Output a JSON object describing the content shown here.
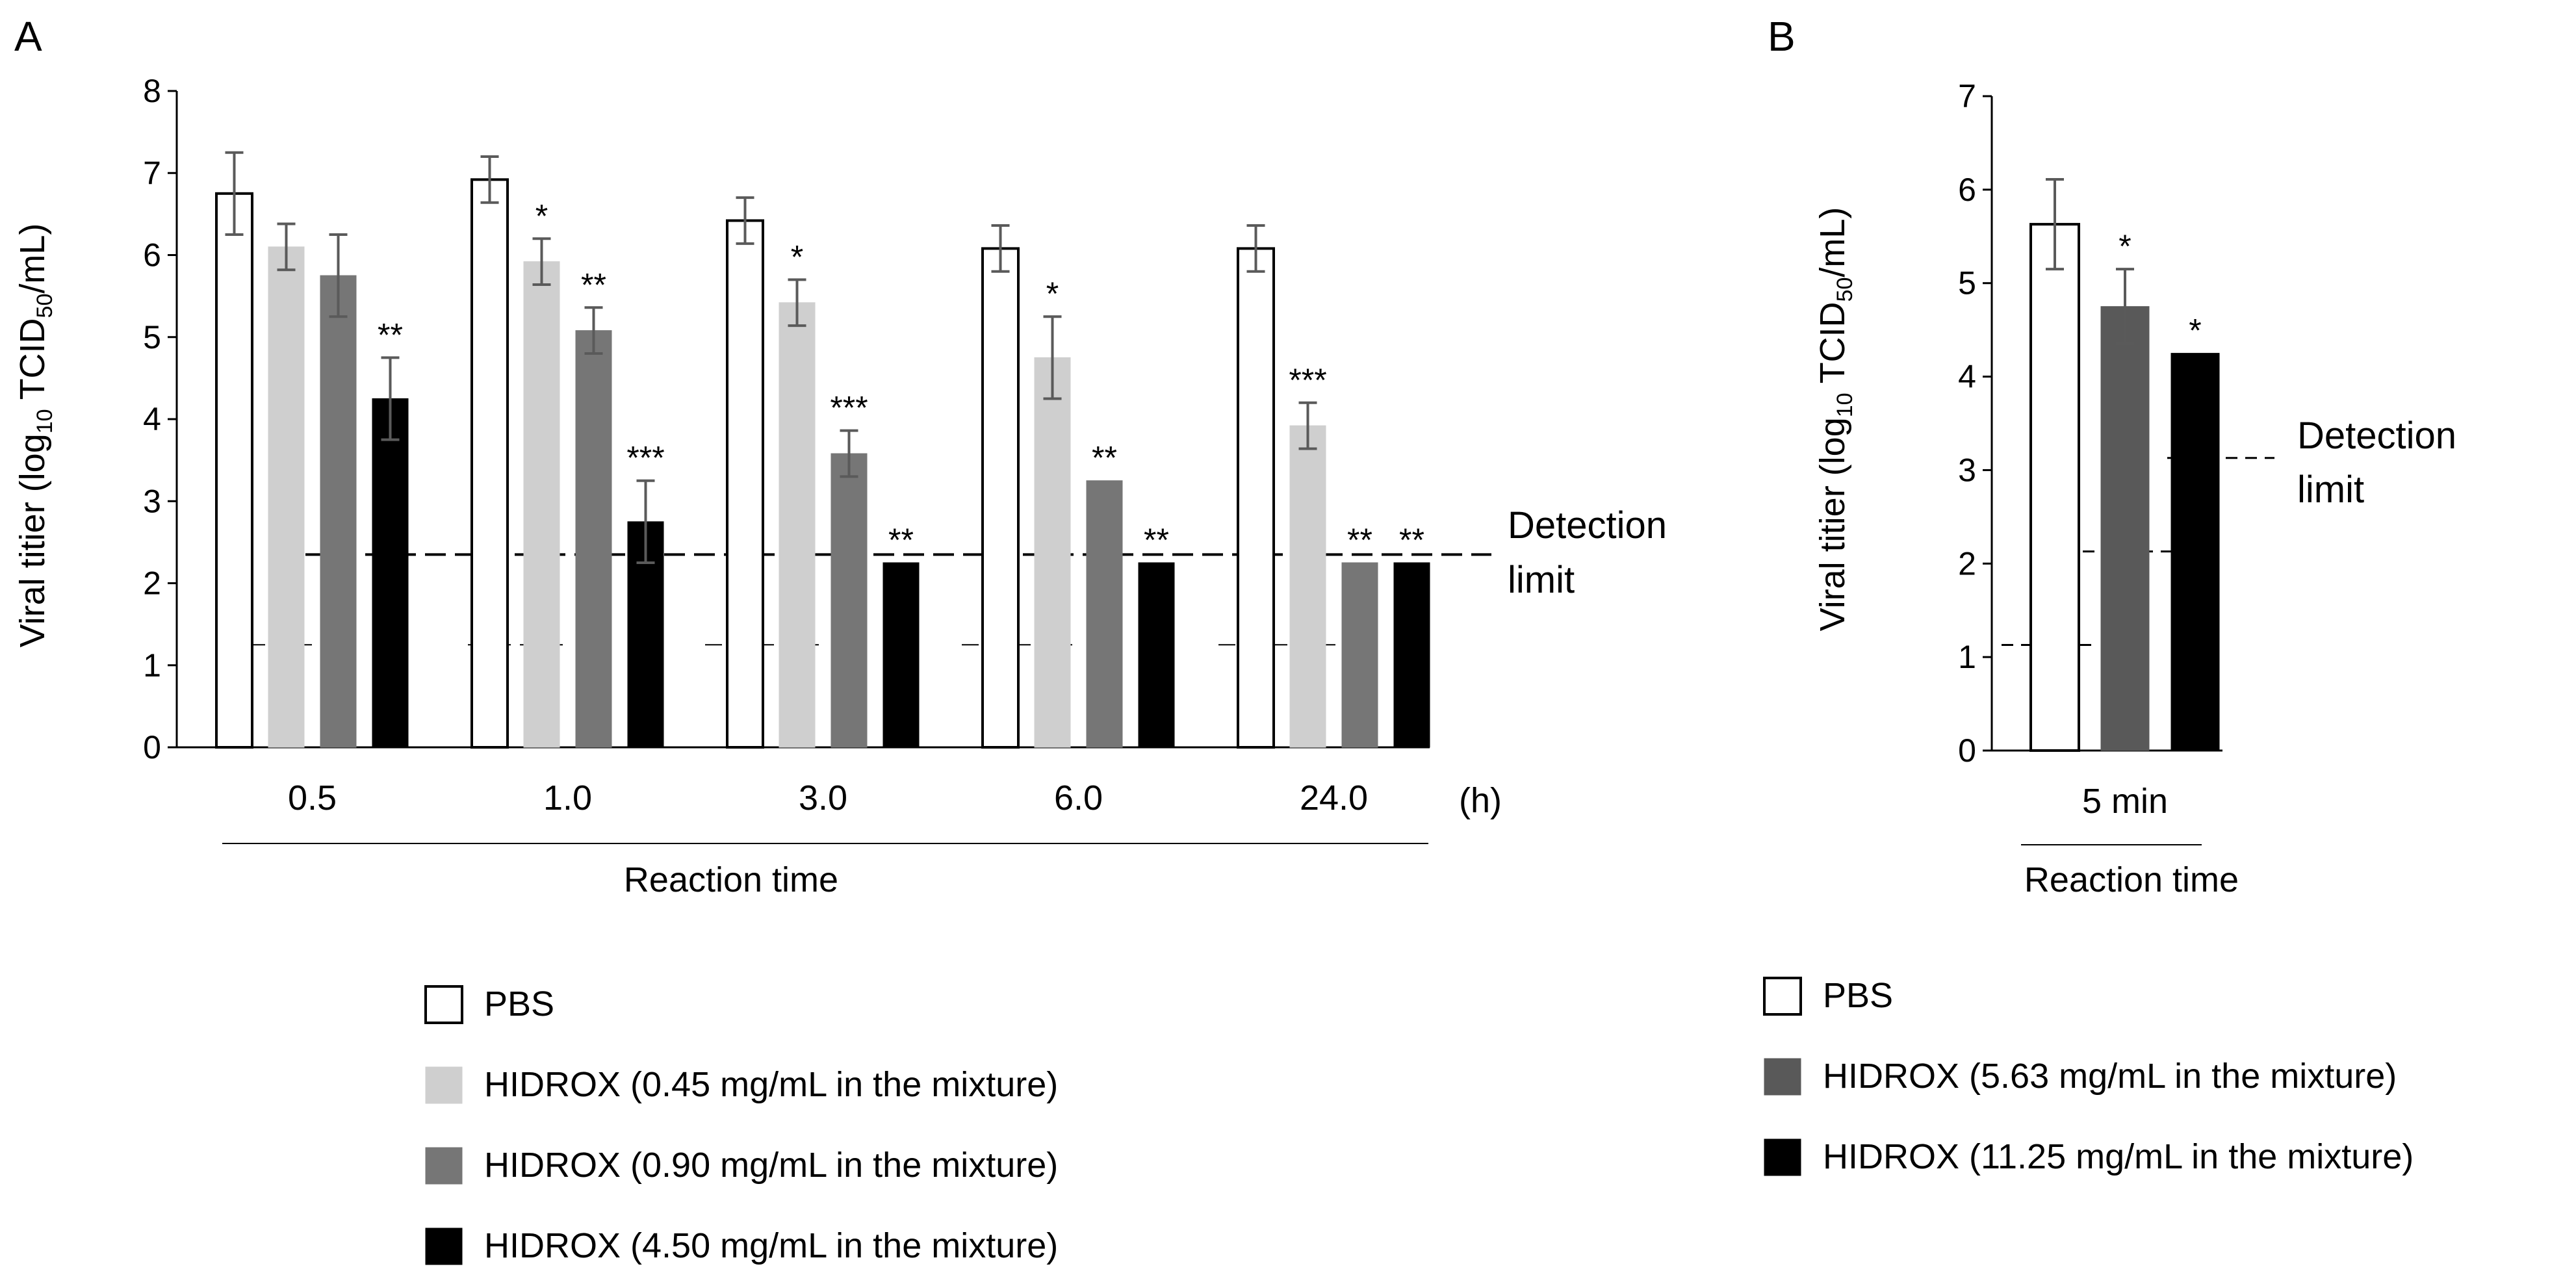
{
  "panels": {
    "A": {
      "letter": "A",
      "ylabel_main": "Viral titier (log",
      "ylabel_sub1": "10",
      "ylabel_mid": " TCID",
      "ylabel_sub2": "50",
      "ylabel_end": "/mL)",
      "xlabel": "Reaction time",
      "unit": "(h)",
      "detection_limit_line1": "Detection",
      "detection_limit_line2": "limit",
      "legend": [
        {
          "label": "PBS"
        },
        {
          "label": "HIDROX (0.45 mg/mL in the mixture)"
        },
        {
          "label": "HIDROX (0.90 mg/mL in the mixture)"
        },
        {
          "label": "HIDROX (4.50 mg/mL in the mixture)"
        }
      ]
    },
    "B": {
      "letter": "B",
      "ylabel_main": "Viral titier (log",
      "ylabel_sub1": "10",
      "ylabel_mid": " TCID",
      "ylabel_sub2": "50",
      "ylabel_end": "/mL)",
      "xlabel": "Reaction time",
      "detection_limit_line1": "Detection",
      "detection_limit_line2": "limit",
      "legend": [
        {
          "label": "PBS"
        },
        {
          "label": "HIDROX (5.63 mg/mL in the mixture)"
        },
        {
          "label": "HIDROX (11.25 mg/mL in the mixture)"
        }
      ]
    }
  },
  "chart_data": [
    {
      "panel": "A",
      "type": "bar",
      "categories": [
        "0.5",
        "1.0",
        "3.0",
        "6.0",
        "24.0"
      ],
      "ylim": [
        0,
        8
      ],
      "yticks": [
        0,
        1,
        2,
        3,
        4,
        5,
        6,
        7,
        8
      ],
      "series": [
        {
          "name": "PBS",
          "color": "#ffffff",
          "values": [
            6.75,
            6.92,
            6.42,
            6.08,
            6.08
          ],
          "errors": [
            0.5,
            0.28,
            0.28,
            0.28,
            0.28
          ],
          "significance": [
            "",
            "",
            "",
            "",
            ""
          ]
        },
        {
          "name": "HIDROX (0.45 mg/mL in the mixture)",
          "color": "#cfcfcf",
          "values": [
            6.1,
            5.92,
            5.42,
            4.75,
            3.92
          ],
          "errors": [
            0.28,
            0.28,
            0.28,
            0.5,
            0.28
          ],
          "significance": [
            "",
            "*",
            "*",
            "*",
            "***"
          ]
        },
        {
          "name": "HIDROX (0.90 mg/mL in the mixture)",
          "color": "#767676",
          "values": [
            5.75,
            5.08,
            3.58,
            3.25,
            2.25
          ],
          "errors": [
            0.5,
            0.28,
            0.28,
            0,
            0
          ],
          "significance": [
            "",
            "**",
            "***",
            "**",
            "**"
          ]
        },
        {
          "name": "HIDROX (4.50 mg/mL in the mixture)",
          "color": "#000000",
          "values": [
            4.25,
            2.75,
            2.25,
            2.25,
            2.25
          ],
          "errors": [
            0.5,
            0.5,
            0,
            0,
            0
          ],
          "significance": [
            "**",
            "***",
            "**",
            "**",
            "**"
          ]
        }
      ],
      "detection_limits": [
        1.25,
        2.35
      ]
    },
    {
      "panel": "B",
      "type": "bar",
      "categories": [
        "5 min"
      ],
      "ylim": [
        0,
        7
      ],
      "yticks": [
        0,
        1,
        2,
        3,
        4,
        5,
        6,
        7
      ],
      "series": [
        {
          "name": "PBS",
          "color": "#ffffff",
          "values": [
            5.63
          ],
          "errors": [
            0.48
          ],
          "significance": [
            ""
          ]
        },
        {
          "name": "HIDROX (5.63 mg/mL in the mixture)",
          "color": "#595959",
          "values": [
            4.75
          ],
          "errors": [
            0.4
          ],
          "significance": [
            "*"
          ]
        },
        {
          "name": "HIDROX (11.25 mg/mL in the mixture)",
          "color": "#000000",
          "values": [
            4.25
          ],
          "errors": [
            0
          ],
          "significance": [
            "*"
          ]
        }
      ],
      "detection_limits": [
        1.13,
        2.13,
        3.13
      ]
    }
  ]
}
